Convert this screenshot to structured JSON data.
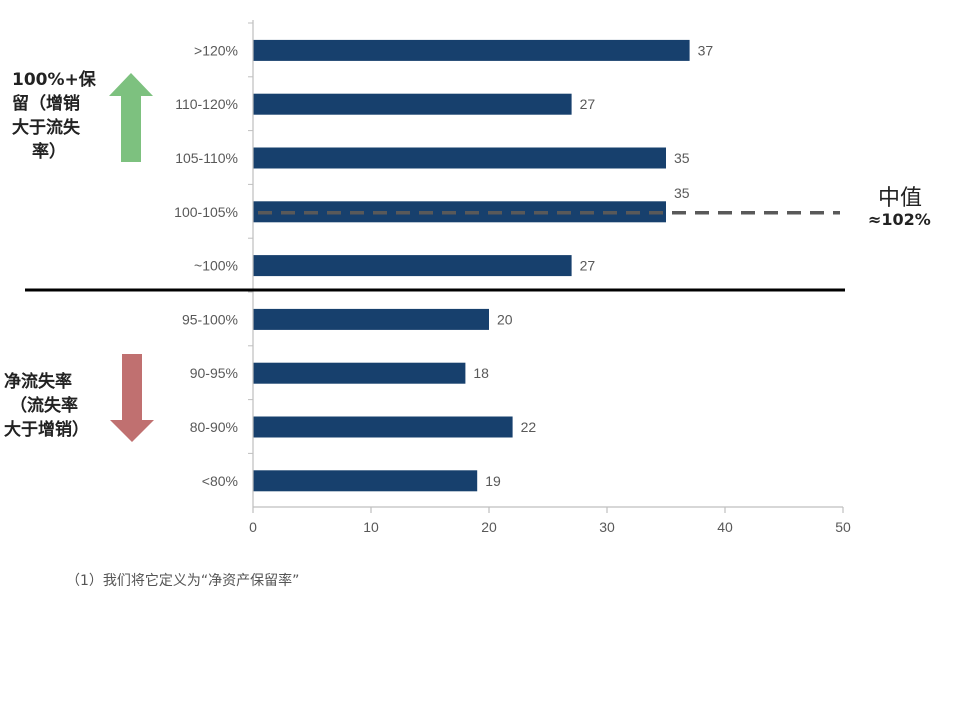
{
  "annotations": {
    "retention_label": "100%+保留（增销大于流失率）",
    "retention_lines": [
      "100%+保",
      "留（增销",
      "大于流失",
      "率）"
    ],
    "churn_lines": [
      "净流失率",
      "（流失率",
      "大于增销）"
    ],
    "median_title": "中值",
    "median_value": "≈102%",
    "footnote": "（1）我们将它定义为“净资产保留率”"
  },
  "colors": {
    "bar": "#17406D",
    "up_arrow": "#7DC17F",
    "down_arrow": "#C07070",
    "divider": "#000000",
    "median_line": "#595959",
    "axis": "#BFBFBF"
  },
  "chart_data": {
    "type": "bar",
    "orientation": "horizontal",
    "categories": [
      ">120%",
      "110-120%",
      "105-110%",
      "100-105%",
      "~100%",
      "95-100%",
      "90-95%",
      "80-90%",
      "<80%"
    ],
    "values": [
      37,
      27,
      35,
      35,
      27,
      20,
      18,
      22,
      19
    ],
    "data_labels": [
      "37",
      "27",
      "35",
      "35",
      "27",
      "20",
      "18",
      "22",
      "19"
    ],
    "xlim": [
      0,
      50
    ],
    "xticks": [
      0,
      10,
      20,
      30,
      40,
      50
    ],
    "xtick_labels": [
      "0",
      "10",
      "20",
      "30",
      "40",
      "50"
    ],
    "median_category": "100-105%",
    "divider_after_category": "~100%",
    "grid": false,
    "legend": "none"
  }
}
